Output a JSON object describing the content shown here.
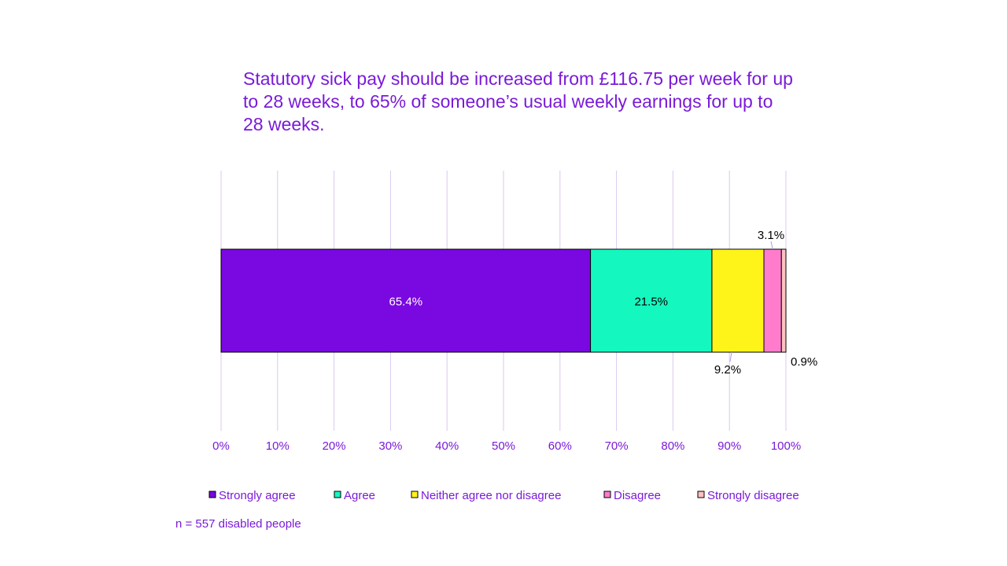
{
  "chart_data": {
    "type": "bar",
    "orientation": "horizontal",
    "stacked": true,
    "title": "Statutory sick pay should be increased from £116.75 per week for up to 28 weeks, to 65% of someone’s usual weekly earnings for up to 28 weeks.",
    "xlim": [
      0,
      100
    ],
    "x_ticks": [
      "0%",
      "10%",
      "20%",
      "30%",
      "40%",
      "50%",
      "60%",
      "70%",
      "80%",
      "90%",
      "100%"
    ],
    "grid": true,
    "legend_placement": "bottom",
    "series": [
      {
        "name": "Strongly agree",
        "value": 65.4,
        "label": "65.4%",
        "color": "#7a08e0",
        "label_color": "#ffffff"
      },
      {
        "name": "Agree",
        "value": 21.5,
        "label": "21.5%",
        "color": "#14f8c0",
        "label_color": "#000000"
      },
      {
        "name": "Neither agree nor disagree",
        "value": 9.2,
        "label": "9.2%",
        "color": "#fff41a",
        "label_color": "#000000"
      },
      {
        "name": "Disagree",
        "value": 3.1,
        "label": "3.1%",
        "color": "#ff7ccc",
        "label_color": "#000000"
      },
      {
        "name": "Strongly disagree",
        "value": 0.9,
        "label": "0.9%",
        "color": "#ffc0c0",
        "label_color": "#000000"
      }
    ],
    "note": "n = 557 disabled people"
  },
  "colors": {
    "text": "#7a1ad8",
    "grid": "#d8c8f0"
  }
}
